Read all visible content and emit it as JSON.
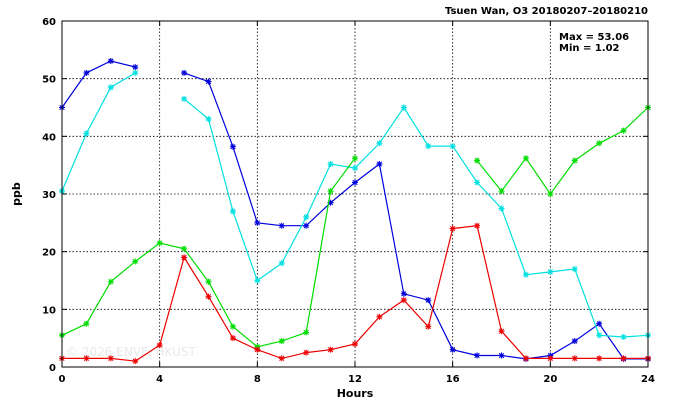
{
  "chart_data": {
    "type": "line",
    "title": "Tsuen Wan, O3 20180207–20180210",
    "xlabel": "Hours",
    "ylabel": "ppb",
    "xlim": [
      0,
      24
    ],
    "ylim": [
      0,
      60
    ],
    "xticks": [
      0,
      4,
      8,
      12,
      16,
      20,
      24
    ],
    "yticks": [
      0,
      10,
      20,
      30,
      40,
      50,
      60
    ],
    "grid": true,
    "marker": "asterisk",
    "stats": {
      "max_label": "Max = 53.06",
      "min_label": "Min = 1.02"
    },
    "watermark": "© 2026 ENVF, HKUST",
    "series": [
      {
        "color": "#0000dd",
        "x": [
          0,
          1,
          2,
          3,
          4,
          5,
          6,
          7,
          8,
          9,
          10,
          11,
          12,
          13,
          14,
          15,
          16,
          17,
          18,
          19,
          20,
          21,
          22,
          23,
          24
        ],
        "y": [
          45.0,
          51.0,
          53.06,
          52.0,
          null,
          51.0,
          49.5,
          38.2,
          25.0,
          24.5,
          24.5,
          28.5,
          32.0,
          35.2,
          12.7,
          11.6,
          3.0,
          2.0,
          2.0,
          1.4,
          2.0,
          4.5,
          7.5,
          1.4,
          1.4
        ]
      },
      {
        "color": "#00e0e0",
        "x": [
          0,
          1,
          2,
          3,
          4,
          5,
          6,
          7,
          8,
          9,
          10,
          11,
          12,
          13,
          14,
          15,
          16,
          17,
          18,
          19,
          20,
          21,
          22,
          23,
          24
        ],
        "y": [
          30.5,
          40.5,
          48.5,
          51.0,
          null,
          46.5,
          43.0,
          27.0,
          15.0,
          18.0,
          26.0,
          35.2,
          34.5,
          38.8,
          45.0,
          38.3,
          38.3,
          32.0,
          27.5,
          16.0,
          16.5,
          17.0,
          5.5,
          5.2,
          5.5
        ]
      },
      {
        "color": "#00dd00",
        "x": [
          0,
          1,
          2,
          3,
          4,
          5,
          6,
          7,
          8,
          9,
          10,
          11,
          12,
          13,
          14,
          15,
          16,
          17,
          18,
          19,
          20,
          21,
          22,
          23,
          24
        ],
        "y": [
          5.5,
          7.5,
          14.8,
          18.3,
          21.5,
          20.5,
          14.8,
          7.0,
          3.5,
          4.5,
          6.0,
          30.5,
          36.2,
          null,
          null,
          null,
          null,
          35.8,
          30.5,
          36.2,
          30.0,
          35.8,
          38.8,
          41.0,
          45.0
        ]
      },
      {
        "color": "#ee0000",
        "x": [
          0,
          1,
          2,
          3,
          4,
          5,
          6,
          7,
          8,
          9,
          10,
          11,
          12,
          13,
          14,
          15,
          16,
          17,
          18,
          19,
          20,
          21,
          22,
          23,
          24
        ],
        "y": [
          1.5,
          1.5,
          1.5,
          1.02,
          3.8,
          19.0,
          12.2,
          5.0,
          3.0,
          1.5,
          2.5,
          3.0,
          4.0,
          8.7,
          11.6,
          7.0,
          24.0,
          24.5,
          6.2,
          1.5,
          1.5,
          1.5,
          1.5,
          1.5,
          1.5
        ]
      }
    ]
  }
}
